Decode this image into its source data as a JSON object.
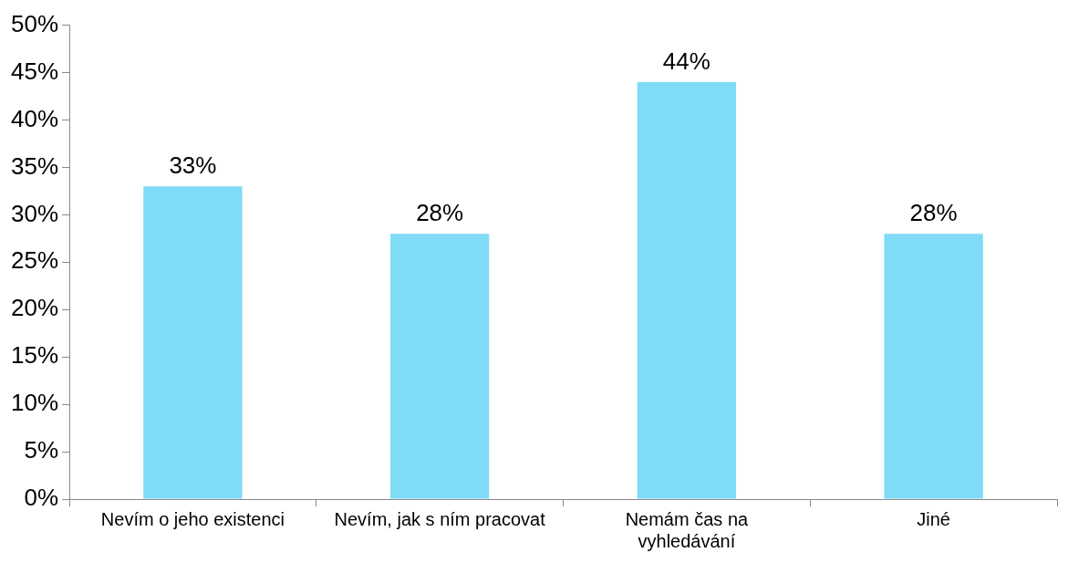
{
  "chart_data": {
    "type": "bar",
    "categories": [
      "Nevím o jeho existenci",
      "Nevím, jak s ním pracovat",
      "Nemám čas na vyhledávání",
      "Jiné"
    ],
    "values": [
      33,
      28,
      44,
      28
    ],
    "value_labels": [
      "33%",
      "28%",
      "44%",
      "28%"
    ],
    "color": "#80dbf7",
    "ylim": [
      0,
      50
    ],
    "yticks": [
      {
        "value": 0,
        "label": "0%"
      },
      {
        "value": 5,
        "label": "5%"
      },
      {
        "value": 10,
        "label": "10%"
      },
      {
        "value": 15,
        "label": "15%"
      },
      {
        "value": 20,
        "label": "20%"
      },
      {
        "value": 25,
        "label": "25%"
      },
      {
        "value": 30,
        "label": "30%"
      },
      {
        "value": 35,
        "label": "35%"
      },
      {
        "value": 40,
        "label": "40%"
      },
      {
        "value": 45,
        "label": "45%"
      },
      {
        "value": 50,
        "label": "50%"
      }
    ],
    "legend": false
  }
}
